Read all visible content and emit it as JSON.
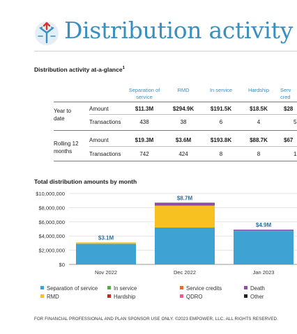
{
  "header": {
    "title": "Distribution activity",
    "icon": "crossroads-arrows-icon"
  },
  "glance": {
    "title": "Distribution activity at-a-glance",
    "footnote_mark": "1",
    "columns": [
      {
        "l1": "Separation of",
        "l2": "service"
      },
      {
        "l1": "",
        "l2": "RMD"
      },
      {
        "l1": "",
        "l2": "In service"
      },
      {
        "l1": "",
        "l2": "Hardship"
      },
      {
        "l1": "Serv",
        "l2": "cred"
      }
    ],
    "groups": [
      {
        "label_l1": "Year to",
        "label_l2": "date",
        "rows": [
          {
            "label": "Amount",
            "values": [
              "$11.3M",
              "$294.9K",
              "$191.5K",
              "$18.5K",
              "$28"
            ]
          },
          {
            "label": "Transactions",
            "values": [
              "438",
              "38",
              "6",
              "4",
              "5"
            ]
          }
        ]
      },
      {
        "label_l1": "Rolling 12",
        "label_l2": "months",
        "rows": [
          {
            "label": "Amount",
            "values": [
              "$19.3M",
              "$3.6M",
              "$193.8K",
              "$88.7K",
              "$67"
            ]
          },
          {
            "label": "Transactions",
            "values": [
              "742",
              "424",
              "8",
              "8",
              "1"
            ]
          }
        ]
      }
    ]
  },
  "chart_data": {
    "type": "bar",
    "stacked": true,
    "title": "Total distribution amounts by month",
    "categories": [
      "Nov 2022",
      "Dec 2022",
      "Jan 2023"
    ],
    "totals_labels": [
      "$3.1M",
      "$8.7M",
      "$4.9M"
    ],
    "ylim": [
      0,
      10000000
    ],
    "yticks": [
      0,
      2000000,
      4000000,
      6000000,
      8000000,
      10000000
    ],
    "ytick_labels": [
      "$0",
      "$2,000,000",
      "$4,000,000",
      "$6,000,000",
      "$8,000,000",
      "$10,000,000"
    ],
    "grid": true,
    "legend_position": "bottom",
    "series": [
      {
        "name": "Separation of service",
        "color": "#3ea3d3",
        "values": [
          2900000,
          5200000,
          4700000
        ]
      },
      {
        "name": "RMD",
        "color": "#f6c121",
        "values": [
          200000,
          3050000,
          0
        ]
      },
      {
        "name": "Hardship",
        "color": "#c9252c",
        "values": [
          0,
          0,
          0
        ]
      },
      {
        "name": "In service",
        "color": "#5aa746",
        "values": [
          0,
          50000,
          100000
        ]
      },
      {
        "name": "Service credits",
        "color": "#e86a2c",
        "values": [
          0,
          0,
          0
        ]
      },
      {
        "name": "QDRO",
        "color": "#e55f8e",
        "values": [
          0,
          0,
          0
        ]
      },
      {
        "name": "Death",
        "color": "#8e4f9e",
        "values": [
          0,
          400000,
          100000
        ]
      },
      {
        "name": "Other",
        "color": "#222222",
        "values": [
          0,
          0,
          0
        ]
      }
    ]
  },
  "legend": [
    {
      "name": "Separation of service",
      "color": "#3ea3d3"
    },
    {
      "name": "In service",
      "color": "#5aa746"
    },
    {
      "name": "Service credits",
      "color": "#e86a2c"
    },
    {
      "name": "Death",
      "color": "#8e4f9e"
    },
    {
      "name": "RMD",
      "color": "#f6c121"
    },
    {
      "name": "Hardship",
      "color": "#c9252c"
    },
    {
      "name": "QDRO",
      "color": "#e55f8e"
    },
    {
      "name": "Other",
      "color": "#222222"
    }
  ],
  "footer": {
    "text": "FOR FINANCIAL PROFESSIONAL AND PLAN SPONSOR USE ONLY. ©2023 EMPOWER, LLC. ALL RIGHTS RESERVED."
  }
}
